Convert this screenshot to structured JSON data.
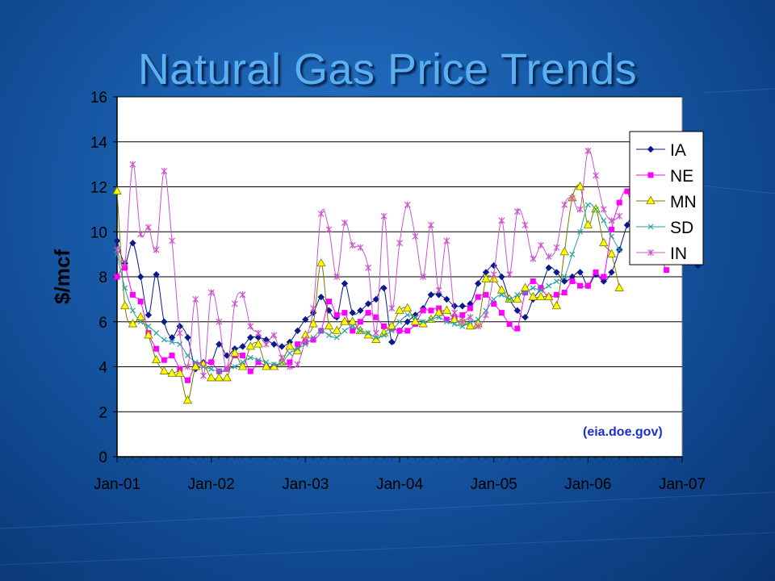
{
  "slide": {
    "title": "Natural Gas Price Trends"
  },
  "chart_data": {
    "type": "line",
    "title": "",
    "ylabel": "$/mcf",
    "xlabel": "",
    "ylim": [
      0,
      16
    ],
    "yticks": [
      0,
      2,
      4,
      6,
      8,
      10,
      12,
      14,
      16
    ],
    "xticks": [
      "Jan-01",
      "Jan-02",
      "Jan-03",
      "Jan-04",
      "Jan-05",
      "Jan-06",
      "Jan-07"
    ],
    "x_start": "Jan-01",
    "annotation": "(eia.doe.gov)",
    "legend_position": "top-right",
    "grid": true,
    "series": [
      {
        "name": "IA",
        "color": "#0a1a8a",
        "marker": "diamond",
        "values": [
          9.6,
          8.6,
          9.5,
          8.0,
          6.3,
          8.1,
          6.0,
          5.3,
          5.8,
          5.3,
          3.9,
          4.2,
          4.2,
          5.0,
          4.5,
          4.8,
          4.9,
          5.3,
          5.3,
          5.2,
          5.0,
          4.9,
          5.1,
          5.6,
          6.1,
          6.4,
          7.1,
          6.5,
          6.2,
          7.7,
          6.4,
          6.5,
          6.8,
          7.0,
          7.5,
          5.1,
          5.6,
          6.0,
          6.3,
          6.6,
          7.2,
          7.2,
          7.0,
          6.7,
          6.7,
          6.8,
          7.7,
          8.2,
          8.5,
          8.0,
          7.0,
          6.5,
          6.2,
          7.0,
          7.5,
          8.4,
          8.2,
          7.8,
          8.0,
          8.2,
          7.6,
          8.1,
          7.8,
          8.2,
          9.2,
          10.3,
          11.0,
          11.7,
          12.2,
          12.0,
          10.9,
          10.3,
          9.5,
          9.0,
          8.5
        ]
      },
      {
        "name": "NE",
        "color": "#ff00ff",
        "marker": "square",
        "values": [
          8.0,
          8.4,
          7.2,
          6.9,
          5.5,
          4.8,
          4.3,
          4.5,
          3.9,
          3.4,
          4.1,
          4.1,
          4.2,
          3.8,
          3.9,
          4.5,
          4.5,
          3.8,
          4.2,
          4.0,
          4.0,
          4.2,
          4.2,
          5.0,
          5.1,
          5.2,
          5.6,
          6.9,
          6.3,
          6.4,
          5.6,
          6.0,
          6.4,
          6.2,
          5.8,
          5.7,
          5.6,
          5.6,
          5.9,
          6.5,
          6.5,
          6.6,
          6.1,
          6.2,
          6.3,
          6.6,
          7.1,
          7.2,
          6.8,
          6.4,
          5.9,
          5.7,
          7.3,
          7.8,
          7.5,
          7.1,
          7.2,
          7.3,
          7.8,
          7.6,
          7.6,
          8.2,
          8.0,
          10.1,
          11.3,
          11.8,
          10.4,
          10.0,
          9.3,
          9.0,
          8.3
        ]
      },
      {
        "name": "MN",
        "color": "#7a7a00",
        "marker": "triangle",
        "fill": "#ffff00",
        "values": [
          11.8,
          6.7,
          5.9,
          6.2,
          5.4,
          4.3,
          3.8,
          3.7,
          3.7,
          2.5,
          4.0,
          4.1,
          3.5,
          3.5,
          3.5,
          4.6,
          4.0,
          4.9,
          5.0,
          4.0,
          4.0,
          4.2,
          4.9,
          4.7,
          5.4,
          5.9,
          8.6,
          5.8,
          5.6,
          6.0,
          6.0,
          5.6,
          5.4,
          5.2,
          5.5,
          5.8,
          6.5,
          6.6,
          6.0,
          5.9,
          6.1,
          6.4,
          6.5,
          6.1,
          6.0,
          5.8,
          5.9,
          7.9,
          7.9,
          7.4,
          7.0,
          7.0,
          7.5,
          7.1,
          7.1,
          7.1,
          6.7,
          9.1,
          11.5,
          12.0,
          10.3,
          11.0,
          9.5,
          9.0,
          7.5
        ]
      },
      {
        "name": "SD",
        "color": "#2aa0a0",
        "marker": "x",
        "values": [
          9.0,
          7.5,
          6.5,
          6.0,
          5.8,
          5.5,
          5.2,
          5.1,
          5.0,
          4.5,
          4.2,
          4.0,
          3.9,
          3.8,
          3.9,
          4.0,
          4.2,
          4.4,
          4.3,
          4.2,
          4.1,
          4.2,
          4.6,
          4.8,
          5.0,
          5.3,
          5.6,
          5.4,
          5.3,
          5.6,
          5.8,
          5.6,
          5.5,
          5.3,
          5.4,
          5.6,
          6.0,
          6.3,
          6.2,
          6.0,
          6.1,
          6.2,
          6.0,
          5.9,
          5.8,
          6.0,
          6.1,
          6.5,
          7.0,
          7.2,
          7.0,
          7.2,
          7.3,
          7.5,
          7.4,
          7.6,
          7.8,
          8.0,
          9.0,
          10.0,
          11.2,
          11.0,
          10.5,
          9.8,
          9.2
        ]
      },
      {
        "name": "IN",
        "color": "#cc55cc",
        "marker": "star",
        "values": [
          9.2,
          8.6,
          13.0,
          9.9,
          10.2,
          9.2,
          12.7,
          9.6,
          5.5,
          4.0,
          7.0,
          3.6,
          7.3,
          6.0,
          3.9,
          6.8,
          7.2,
          5.8,
          5.5,
          5.0,
          5.4,
          4.4,
          4.0,
          4.1,
          5.2,
          6.6,
          10.8,
          10.1,
          8.0,
          10.4,
          9.4,
          9.3,
          8.4,
          5.5,
          10.7,
          6.6,
          9.5,
          11.2,
          9.8,
          8.0,
          10.3,
          7.4,
          9.6,
          6.4,
          6.0,
          6.2,
          5.8,
          6.3,
          8.1,
          10.5,
          8.1,
          10.9,
          10.3,
          8.8,
          9.4,
          8.9,
          9.3,
          11.2,
          11.5,
          11.0,
          13.6,
          12.5,
          11.0,
          10.5,
          10.7
        ]
      }
    ]
  }
}
